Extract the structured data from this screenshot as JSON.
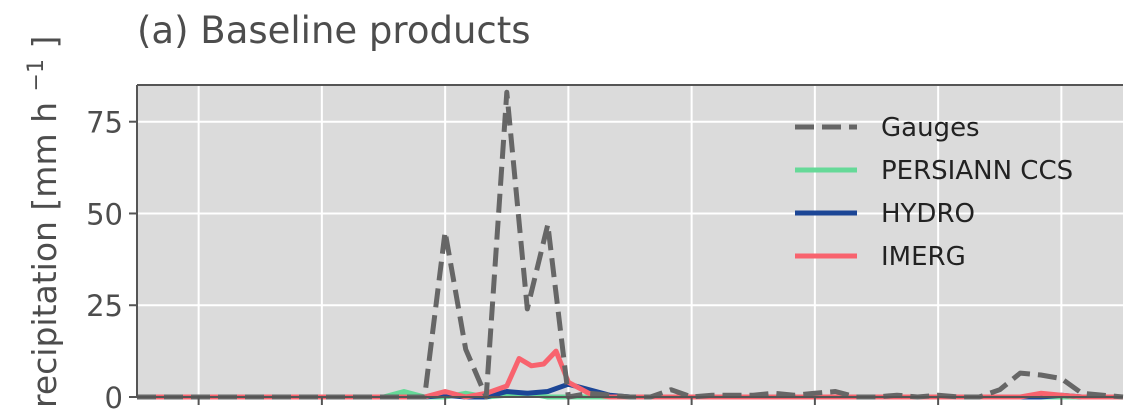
{
  "chart_data": {
    "type": "line",
    "title": "(a) Baseline products",
    "ylabel": "recipitation [mm h",
    "ylabel_exp": "−1",
    "ylabel_close": "]",
    "ylim": [
      0,
      85
    ],
    "xlim": [
      -1.5,
      22.5
    ],
    "yticks": [
      0,
      25,
      50,
      75
    ],
    "ytick_labels": [
      "0",
      "25",
      "50",
      "75"
    ],
    "xticks": [
      0,
      3,
      6,
      9,
      12,
      15,
      18,
      21
    ],
    "grid": true,
    "legend_position": "upper right",
    "series": [
      {
        "name": "Gauges",
        "color": "#666666",
        "dash": true,
        "x": [
          -1.5,
          5.0,
          5.5,
          6.0,
          6.5,
          7.0,
          7.5,
          8.0,
          8.5,
          9.0,
          9.5,
          10.0,
          10.5,
          11.0,
          11.5,
          12.0,
          12.5,
          13.0,
          13.5,
          14.0,
          14.5,
          15.0,
          15.5,
          16.0,
          16.5,
          17.0,
          17.5,
          18.0,
          18.5,
          19.0,
          19.5,
          20.0,
          20.5,
          21.0,
          21.5,
          22.5
        ],
        "y": [
          0,
          0,
          0,
          45,
          13,
          0,
          83,
          24,
          47,
          0,
          1,
          0.5,
          0,
          0,
          2,
          0,
          0.5,
          0.5,
          0.5,
          1,
          0.5,
          1,
          1.5,
          0,
          0,
          0.5,
          0,
          0.5,
          0,
          0,
          2,
          6.5,
          6,
          5,
          1,
          0
        ]
      },
      {
        "name": "PERSIANN CCS",
        "color": "#66d998",
        "dash": false,
        "x": [
          -1.5,
          4.5,
          5.0,
          5.5,
          6.0,
          6.5,
          7.0,
          7.5,
          8.0,
          8.5,
          9.0,
          9.5,
          22.5
        ],
        "y": [
          0,
          0,
          1.5,
          0,
          0,
          1,
          0,
          0.5,
          1,
          0,
          0,
          0,
          0
        ]
      },
      {
        "name": "HYDRO",
        "color": "#1c4696",
        "dash": false,
        "x": [
          -1.5,
          5.5,
          6.0,
          6.5,
          7.0,
          7.5,
          8.0,
          8.5,
          9.0,
          9.5,
          10.0,
          10.5,
          20.5,
          21.0,
          21.5,
          22.5
        ],
        "y": [
          0,
          0,
          0.5,
          0,
          0,
          1.5,
          1,
          1.5,
          3.5,
          2,
          0.5,
          0,
          0,
          0.5,
          0,
          0
        ]
      },
      {
        "name": "IMERG",
        "color": "#f8636e",
        "dash": false,
        "x": [
          -1.5,
          5.5,
          6.0,
          6.5,
          7.0,
          7.5,
          7.8,
          8.1,
          8.4,
          8.7,
          9.0,
          9.5,
          10.0,
          20.0,
          20.5,
          21.0,
          21.5,
          22.5
        ],
        "y": [
          0,
          0,
          1.5,
          0,
          1,
          3,
          10.5,
          8.5,
          9,
          12.5,
          4,
          1,
          0,
          0,
          1,
          0.5,
          0,
          0
        ]
      }
    ]
  }
}
